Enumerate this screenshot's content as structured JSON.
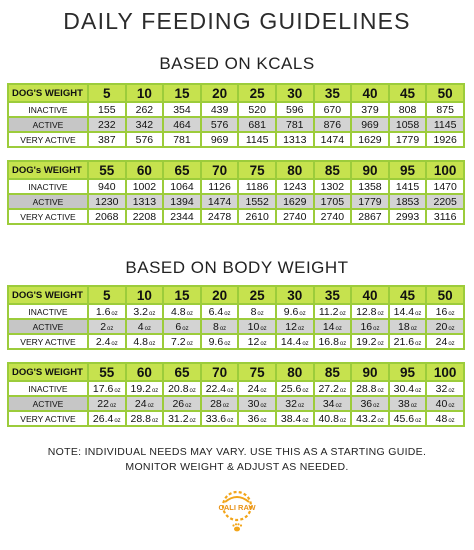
{
  "title": "DAILY FEEDING GUIDELINES",
  "section_kcal": {
    "heading": "BASED ON KCALS",
    "tables": [
      {
        "header_label": "DOG'S WEIGHT",
        "weights": [
          "5",
          "10",
          "15",
          "20",
          "25",
          "30",
          "35",
          "40",
          "45",
          "50"
        ],
        "rows": [
          {
            "label": "INACTIVE",
            "values": [
              "155",
              "262",
              "354",
              "439",
              "520",
              "596",
              "670",
              "379",
              "808",
              "875"
            ]
          },
          {
            "label": "ACTIVE",
            "values": [
              "232",
              "342",
              "464",
              "576",
              "681",
              "781",
              "876",
              "969",
              "1058",
              "1145"
            ]
          },
          {
            "label": "VERY ACTIVE",
            "values": [
              "387",
              "576",
              "781",
              "969",
              "1145",
              "1313",
              "1474",
              "1629",
              "1779",
              "1926"
            ]
          }
        ]
      },
      {
        "header_label": "DOG's WEIGHT",
        "weights": [
          "55",
          "60",
          "65",
          "70",
          "75",
          "80",
          "85",
          "90",
          "95",
          "100"
        ],
        "rows": [
          {
            "label": "INACTIVE",
            "values": [
              "940",
              "1002",
              "1064",
              "1126",
              "1186",
              "1243",
              "1302",
              "1358",
              "1415",
              "1470"
            ]
          },
          {
            "label": "ACTIVE",
            "values": [
              "1230",
              "1313",
              "1394",
              "1474",
              "1552",
              "1629",
              "1705",
              "1779",
              "1853",
              "2205"
            ]
          },
          {
            "label": "VERY ACTIVE",
            "values": [
              "2068",
              "2208",
              "2344",
              "2478",
              "2610",
              "2740",
              "2740",
              "2867",
              "2993",
              "3116"
            ]
          }
        ]
      }
    ]
  },
  "section_weight": {
    "heading": "BASED ON BODY WEIGHT",
    "unit": "oz",
    "tables": [
      {
        "header_label": "DOG'S WEIGHT",
        "weights": [
          "5",
          "10",
          "15",
          "20",
          "25",
          "30",
          "35",
          "40",
          "45",
          "50"
        ],
        "rows": [
          {
            "label": "INACTIVE",
            "values": [
              "1.6",
              "3.2",
              "4.8",
              "6.4",
              "8",
              "9.6",
              "11.2",
              "12.8",
              "14.4",
              "16"
            ]
          },
          {
            "label": "ACTIVE",
            "values": [
              "2",
              "4",
              "6",
              "8",
              "10",
              "12",
              "14",
              "16",
              "18",
              "20"
            ]
          },
          {
            "label": "VERY ACTIVE",
            "values": [
              "2.4",
              "4.8",
              "7.2",
              "9.6",
              "12",
              "14.4",
              "16.8",
              "19.2",
              "21.6",
              "24"
            ]
          }
        ]
      },
      {
        "header_label": "DOG'S WEIGHT",
        "weights": [
          "55",
          "60",
          "65",
          "70",
          "75",
          "80",
          "85",
          "90",
          "95",
          "100"
        ],
        "rows": [
          {
            "label": "INACTIVE",
            "values": [
              "17.6",
              "19.2",
              "20.8",
              "22.4",
              "24",
              "25.6",
              "27.2",
              "28.8",
              "30.4",
              "32"
            ]
          },
          {
            "label": "ACTIVE",
            "values": [
              "22",
              "24",
              "26",
              "28",
              "30",
              "32",
              "34",
              "36",
              "38",
              "40"
            ]
          },
          {
            "label": "VERY ACTIVE",
            "values": [
              "26.4",
              "28.8",
              "31.2",
              "33.6",
              "36",
              "38.4",
              "40.8",
              "43.2",
              "45.6",
              "48"
            ]
          }
        ]
      }
    ]
  },
  "note_line1": "NOTE: INDIVIDUAL NEEDS MAY VARY. USE THIS AS A STARTING GUIDE.",
  "note_line2": "MONITOR WEIGHT & ADJUST AS NEEDED.",
  "logo": {
    "text": "CALI RAW",
    "icon": "sun-logo-icon"
  },
  "colors": {
    "header_green": "#c6e24e",
    "border_green": "#9ccc3b",
    "row_grey": "#d3d3d3",
    "logo_orange": "#f2a51a"
  }
}
